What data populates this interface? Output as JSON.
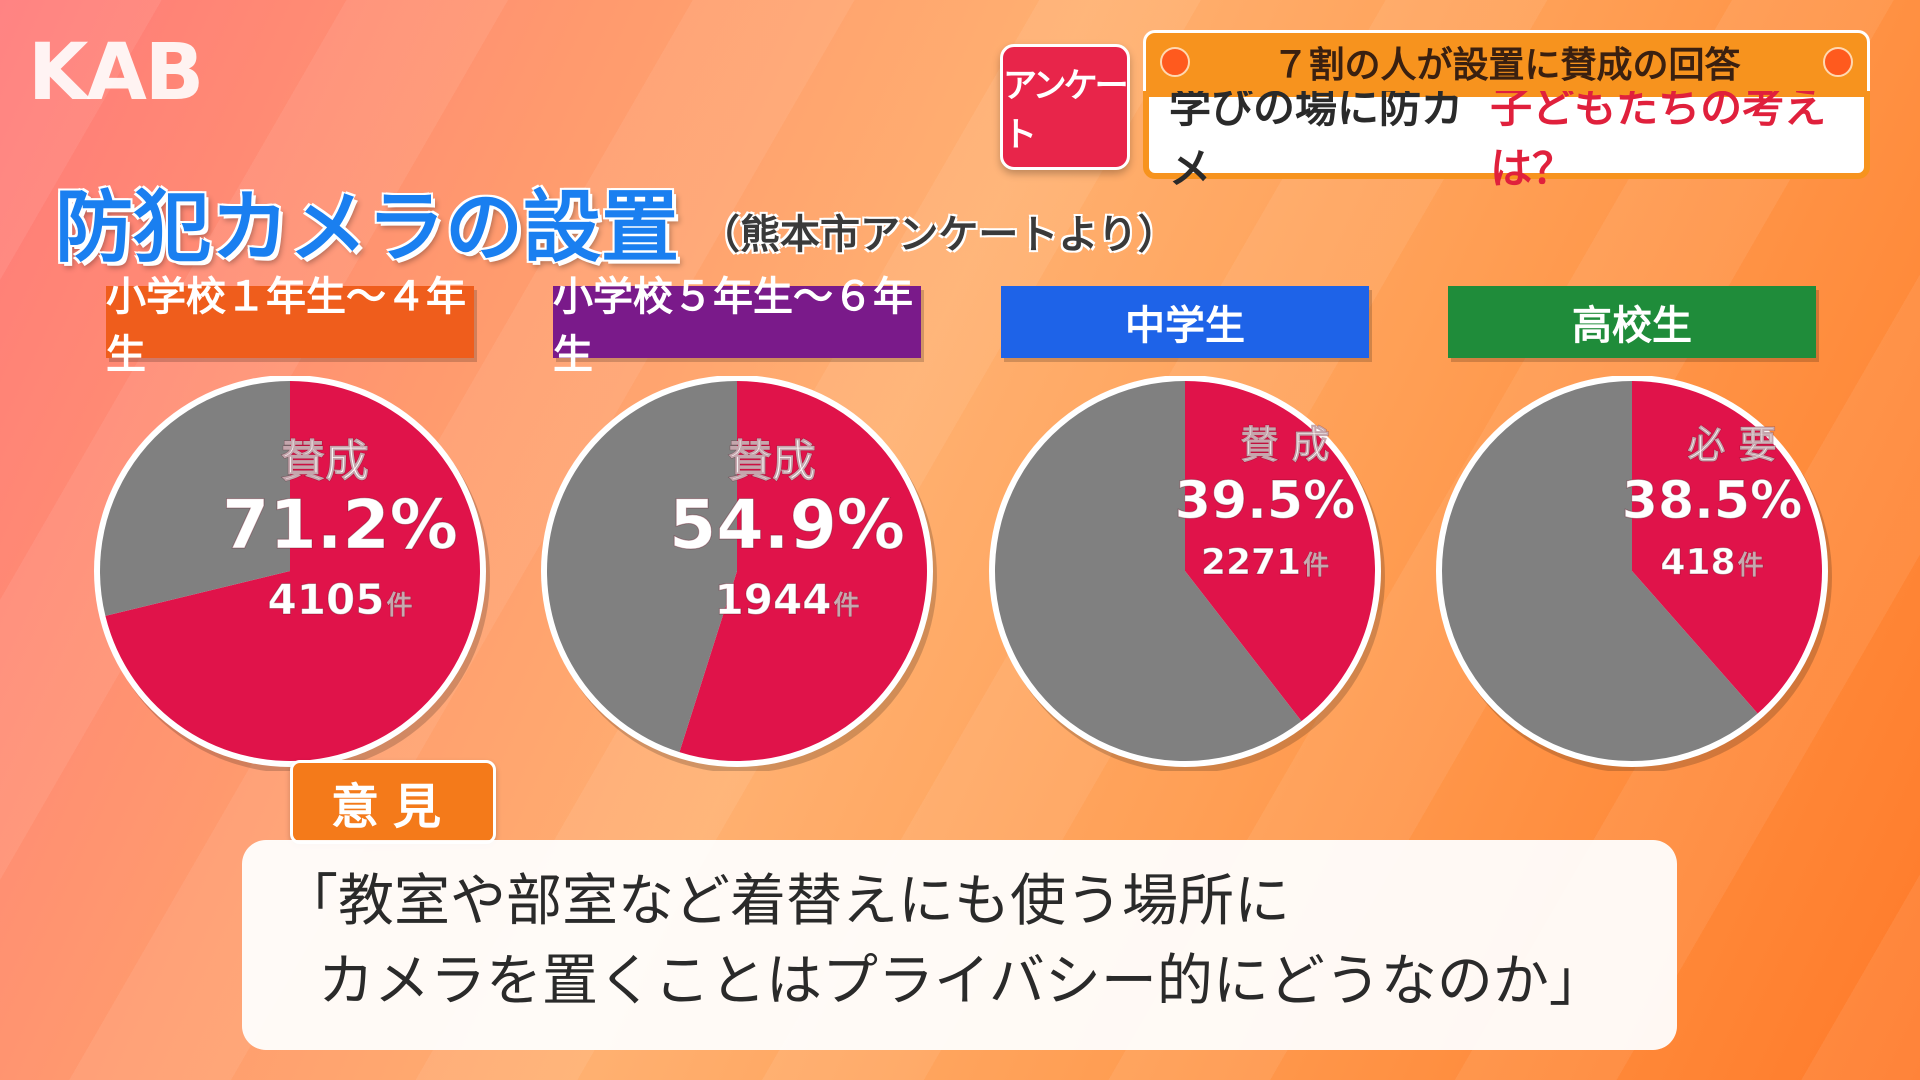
{
  "logo": "KAB",
  "header": {
    "tag": "アンケート",
    "top_line": "７割の人が設置に賛成の回答",
    "bottom_black": "学びの場に防カメ",
    "bottom_red": "子どもたちの考えは？",
    "accent": "#f7931e"
  },
  "title": "防犯カメラの設置",
  "subtitle": "（熊本市アンケートより）",
  "chart_data": [
    {
      "type": "pie",
      "title": "小学校１年生～４年生",
      "title_color": "#ef5d1c",
      "slices": [
        {
          "label": "賛成",
          "value": 71.2,
          "count": "4105",
          "color": "#e0134a"
        },
        {
          "label": "",
          "value": 28.8,
          "color": "#808080"
        }
      ],
      "pct_text": "71.2%",
      "count_text": "4105",
      "unit": "件"
    },
    {
      "type": "pie",
      "title": "小学校５年生～６年生",
      "title_color": "#7a1a8a",
      "slices": [
        {
          "label": "賛成",
          "value": 54.9,
          "count": "1944",
          "color": "#e0134a"
        },
        {
          "label": "",
          "value": 45.1,
          "color": "#808080"
        }
      ],
      "pct_text": "54.9%",
      "count_text": "1944",
      "unit": "件"
    },
    {
      "type": "pie",
      "title": "中学生",
      "title_color": "#1e63e8",
      "slices": [
        {
          "label": "賛 成",
          "value": 39.5,
          "count": "2271",
          "color": "#e0134a"
        },
        {
          "label": "",
          "value": 60.5,
          "color": "#808080"
        }
      ],
      "pct_text": "39.5%",
      "count_text": "2271",
      "unit": "件"
    },
    {
      "type": "pie",
      "title": "高校生",
      "title_color": "#1f8c3a",
      "slices": [
        {
          "label": "必 要",
          "value": 38.5,
          "count": "418",
          "color": "#e0134a"
        },
        {
          "label": "",
          "value": 61.5,
          "color": "#808080"
        }
      ],
      "pct_text": "38.5%",
      "count_text": "418",
      "unit": "件"
    }
  ],
  "opinion": {
    "label": "意見",
    "line1": "「教室や部室など着替えにも使う場所に",
    "line2": "カメラを置くことはプライバシー的にどうなのか」"
  }
}
